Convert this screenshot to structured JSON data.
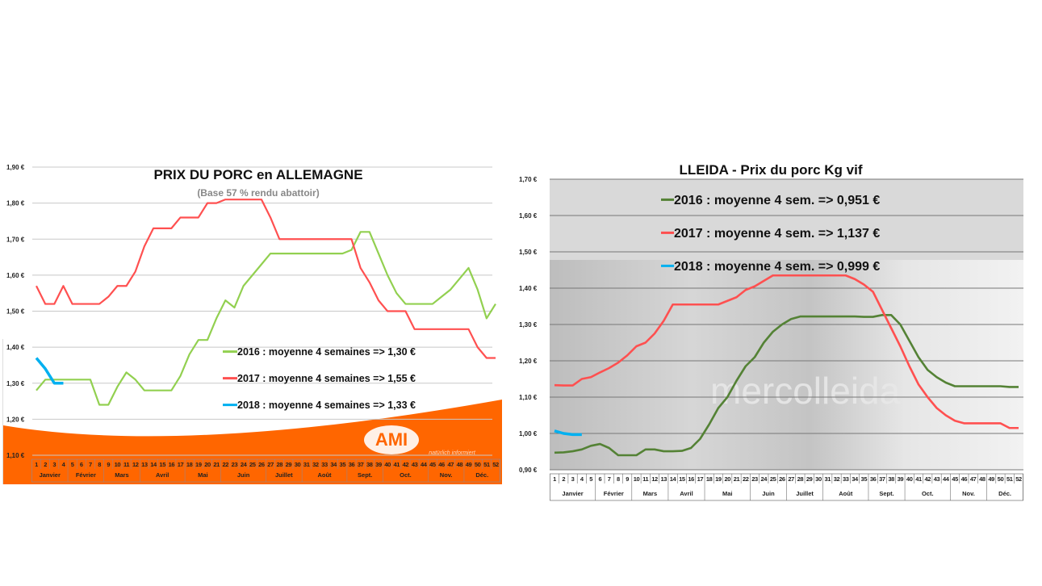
{
  "chart_data": [
    {
      "type": "line",
      "title": "PRIX DU PORC en ALLEMAGNE",
      "subtitle": "(Base 57 % rendu abattoir)",
      "xlabel": "",
      "ylabel": "",
      "ylim": [
        1.1,
        1.9
      ],
      "yticks": [
        "1,10 €",
        "1,20 €",
        "1,30 €",
        "1,40 €",
        "1,50 €",
        "1,60 €",
        "1,70 €",
        "1,80 €",
        "1,90 €"
      ],
      "weeks": 52,
      "months": [
        {
          "label": "Janvier",
          "from": 1,
          "to": 4
        },
        {
          "label": "Février",
          "from": 5,
          "to": 8
        },
        {
          "label": "Mars",
          "from": 9,
          "to": 12
        },
        {
          "label": "Avril",
          "from": 13,
          "to": 17
        },
        {
          "label": "Mai",
          "from": 18,
          "to": 21
        },
        {
          "label": "Juin",
          "from": 22,
          "to": 26
        },
        {
          "label": "Juillet",
          "from": 27,
          "to": 30
        },
        {
          "label": "Août",
          "from": 31,
          "to": 35
        },
        {
          "label": "Sept.",
          "from": 36,
          "to": 39
        },
        {
          "label": "Oct.",
          "from": 40,
          "to": 44
        },
        {
          "label": "Nov.",
          "from": 45,
          "to": 48
        },
        {
          "label": "Déc.",
          "from": 49,
          "to": 52
        }
      ],
      "grid": true,
      "legend_position": "bottom-right",
      "logo_text": "AMI natürlich informiert",
      "series": [
        {
          "name": "2016 : moyenne 4 semaines   => 1,30 €",
          "color": "#92d050",
          "values": [
            1.28,
            1.31,
            1.31,
            1.31,
            1.31,
            1.31,
            1.31,
            1.24,
            1.24,
            1.29,
            1.33,
            1.31,
            1.28,
            1.28,
            1.28,
            1.28,
            1.32,
            1.38,
            1.42,
            1.42,
            1.48,
            1.53,
            1.51,
            1.57,
            1.6,
            1.63,
            1.66,
            1.66,
            1.66,
            1.66,
            1.66,
            1.66,
            1.66,
            1.66,
            1.66,
            1.67,
            1.72,
            1.72,
            1.66,
            1.6,
            1.55,
            1.52,
            1.52,
            1.52,
            1.52,
            1.54,
            1.56,
            1.59,
            1.62,
            1.56,
            1.48,
            1.52
          ]
        },
        {
          "name": "2017 : moyenne 4 semaines   => 1,55 €",
          "color": "#ff5050",
          "values": [
            1.57,
            1.52,
            1.52,
            1.57,
            1.52,
            1.52,
            1.52,
            1.52,
            1.54,
            1.57,
            1.57,
            1.61,
            1.68,
            1.73,
            1.73,
            1.73,
            1.76,
            1.76,
            1.76,
            1.8,
            1.8,
            1.81,
            1.81,
            1.81,
            1.81,
            1.81,
            1.76,
            1.7,
            1.7,
            1.7,
            1.7,
            1.7,
            1.7,
            1.7,
            1.7,
            1.7,
            1.62,
            1.58,
            1.53,
            1.5,
            1.5,
            1.5,
            1.45,
            1.45,
            1.45,
            1.45,
            1.45,
            1.45,
            1.45,
            1.4,
            1.37,
            1.37
          ]
        },
        {
          "name": "2018 : moyenne 4 semaines   => 1,33 €",
          "color": "#00b0f0",
          "values": [
            1.37,
            1.34,
            1.3,
            1.3
          ]
        }
      ]
    },
    {
      "type": "line",
      "title": "LLEIDA - Prix du porc Kg vif",
      "xlabel": "",
      "ylabel": "",
      "ylim": [
        0.9,
        1.7
      ],
      "yticks": [
        "0,90 €",
        "1,00 €",
        "1,10 €",
        "1,20 €",
        "1,30 €",
        "1,40 €",
        "1,50 €",
        "1,60 €",
        "1,70 €"
      ],
      "weeks": 52,
      "months": [
        {
          "label": "Janvier",
          "from": 1,
          "to": 5
        },
        {
          "label": "Février",
          "from": 6,
          "to": 9
        },
        {
          "label": "Mars",
          "from": 10,
          "to": 13
        },
        {
          "label": "Avril",
          "from": 14,
          "to": 17
        },
        {
          "label": "Mai",
          "from": 18,
          "to": 22
        },
        {
          "label": "Juin",
          "from": 23,
          "to": 26
        },
        {
          "label": "Juillet",
          "from": 27,
          "to": 30
        },
        {
          "label": "Août",
          "from": 31,
          "to": 35
        },
        {
          "label": "Sept.",
          "from": 36,
          "to": 39
        },
        {
          "label": "Oct.",
          "from": 40,
          "to": 44
        },
        {
          "label": "Nov.",
          "from": 45,
          "to": 48
        },
        {
          "label": "Déc.",
          "from": 49,
          "to": 52
        }
      ],
      "grid": true,
      "legend_position": "top",
      "background_watermark": "mercolleida",
      "series": [
        {
          "name": "2016 : moyenne 4 sem. => 0,951 €",
          "color": "#548235",
          "values": [
            0.947,
            0.948,
            0.951,
            0.956,
            0.966,
            0.971,
            0.96,
            0.94,
            0.94,
            0.94,
            0.956,
            0.956,
            0.951,
            0.951,
            0.952,
            0.96,
            0.985,
            1.025,
            1.07,
            1.1,
            1.145,
            1.185,
            1.21,
            1.25,
            1.28,
            1.3,
            1.315,
            1.322,
            1.322,
            1.322,
            1.322,
            1.322,
            1.322,
            1.322,
            1.321,
            1.321,
            1.326,
            1.326,
            1.3,
            1.255,
            1.21,
            1.175,
            1.155,
            1.14,
            1.13,
            1.13,
            1.13,
            1.13,
            1.13,
            1.13,
            1.128,
            1.128
          ]
        },
        {
          "name": "2017 : moyenne 4 sem. => 1,137 €",
          "color": "#ff5050",
          "values": [
            1.133,
            1.132,
            1.132,
            1.15,
            1.155,
            1.168,
            1.18,
            1.195,
            1.215,
            1.24,
            1.25,
            1.275,
            1.31,
            1.355,
            1.355,
            1.355,
            1.355,
            1.355,
            1.355,
            1.365,
            1.375,
            1.395,
            1.405,
            1.42,
            1.435,
            1.435,
            1.435,
            1.435,
            1.435,
            1.435,
            1.435,
            1.435,
            1.435,
            1.425,
            1.41,
            1.39,
            1.34,
            1.29,
            1.24,
            1.185,
            1.135,
            1.1,
            1.07,
            1.05,
            1.035,
            1.028,
            1.028,
            1.028,
            1.028,
            1.028,
            1.015,
            1.015
          ]
        },
        {
          "name": "2018 : moyenne 4 sem. => 0,999 €",
          "color": "#00b0f0",
          "values": [
            1.007,
            1.0,
            0.997,
            0.997
          ]
        }
      ]
    }
  ]
}
